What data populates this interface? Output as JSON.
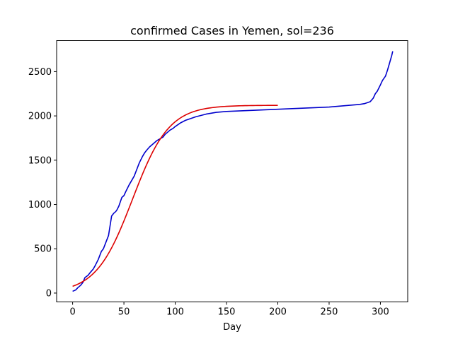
{
  "chart_data": {
    "type": "line",
    "title": "confirmed Cases in Yemen, sol=236",
    "xlabel": "Day",
    "ylabel": "",
    "xlim": [
      -15.6,
      326.6
    ],
    "ylim": [
      -100,
      2850
    ],
    "xticks": [
      0,
      50,
      100,
      150,
      200,
      250,
      300
    ],
    "yticks": [
      0,
      500,
      1000,
      1500,
      2000,
      2500
    ],
    "grid": false,
    "legend": "none",
    "series": [
      {
        "color": "#0000cc",
        "x": [
          0,
          3,
          5,
          8,
          10,
          12,
          15,
          17,
          20,
          22,
          25,
          28,
          30,
          32,
          35,
          38,
          40,
          42,
          43,
          45,
          48,
          50,
          52,
          55,
          58,
          60,
          62,
          65,
          68,
          70,
          72,
          75,
          78,
          80,
          82,
          85,
          88,
          90,
          92,
          95,
          98,
          100,
          105,
          110,
          115,
          120,
          130,
          140,
          150,
          160,
          170,
          180,
          190,
          200,
          210,
          220,
          230,
          240,
          250,
          260,
          270,
          280,
          285,
          290,
          293,
          295,
          297,
          300,
          302,
          305,
          307,
          309,
          311,
          312
        ],
        "y": [
          20,
          35,
          60,
          90,
          120,
          175,
          200,
          230,
          270,
          310,
          380,
          470,
          500,
          560,
          650,
          870,
          900,
          920,
          935,
          980,
          1080,
          1100,
          1150,
          1220,
          1280,
          1320,
          1380,
          1470,
          1540,
          1580,
          1610,
          1650,
          1680,
          1700,
          1720,
          1740,
          1760,
          1790,
          1810,
          1840,
          1860,
          1880,
          1920,
          1950,
          1970,
          1990,
          2020,
          2040,
          2050,
          2055,
          2060,
          2065,
          2070,
          2075,
          2080,
          2085,
          2090,
          2095,
          2100,
          2110,
          2120,
          2130,
          2140,
          2160,
          2200,
          2250,
          2280,
          2350,
          2400,
          2450,
          2520,
          2600,
          2680,
          2730
        ]
      },
      {
        "color": "#dd0000",
        "fit": {
          "L": 2120,
          "k": 0.0563,
          "x0": 58.4,
          "x_range": [
            0,
            200
          ]
        }
      }
    ]
  }
}
